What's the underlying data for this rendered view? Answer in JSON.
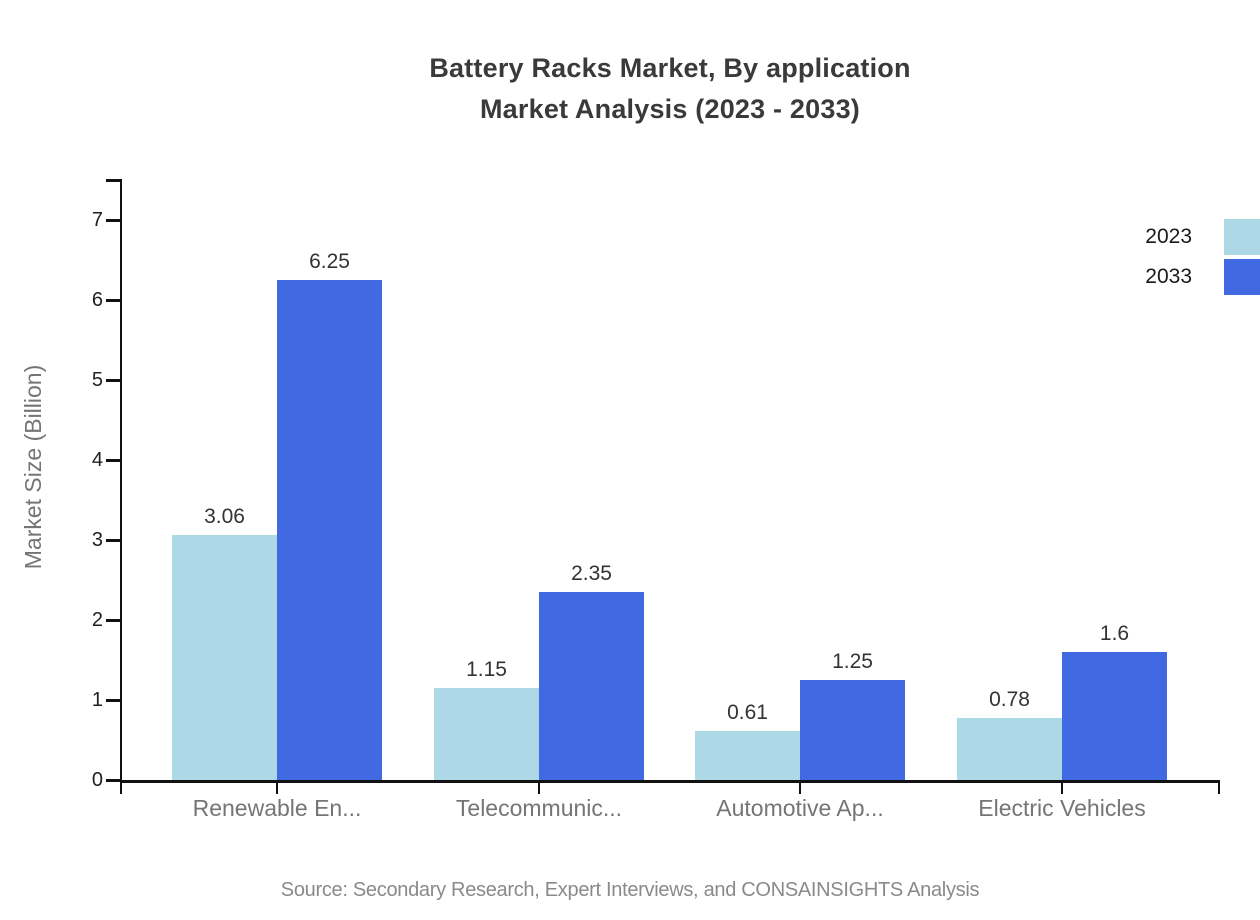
{
  "title": {
    "line1": "Battery Racks Market, By application",
    "line2": "Market Analysis (2023 - 2033)"
  },
  "y_axis": {
    "label": "Market Size (Billion)"
  },
  "legend": {
    "items": [
      {
        "label": "2023",
        "color": "#ADD8E6"
      },
      {
        "label": "2033",
        "color": "#4169E1"
      }
    ]
  },
  "source": "Source: Secondary Research, Expert Interviews, and CONSAINSIGHTS Analysis",
  "chart_data": {
    "type": "bar",
    "title": "Battery Racks Market, By application Market Analysis (2023 - 2033)",
    "categories": [
      "Renewable En...",
      "Telecommunic...",
      "Automotive Ap...",
      "Electric Vehicles"
    ],
    "series": [
      {
        "name": "2023",
        "color": "#ADD8E6",
        "values": [
          3.06,
          1.15,
          0.61,
          0.78
        ]
      },
      {
        "name": "2033",
        "color": "#4169E1",
        "values": [
          6.25,
          2.35,
          1.25,
          1.6
        ]
      }
    ],
    "xlabel": "",
    "ylabel": "Market Size (Billion)",
    "ylim": [
      0,
      7.5
    ],
    "y_ticks": [
      0,
      1,
      2,
      3,
      4,
      5,
      6,
      7
    ],
    "grid": false,
    "legend_position": "top-right",
    "value_labels_shown": true,
    "axis_color": "#111111",
    "text_colors": {
      "title": "#3a3a3a",
      "axis_ticks": "#212121",
      "categories": "#757575",
      "source": "#8a8a8a"
    }
  }
}
